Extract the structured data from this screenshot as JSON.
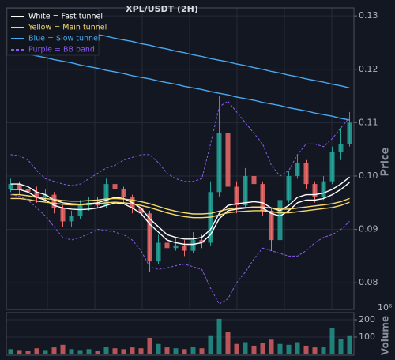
{
  "chart_data": [
    {
      "type": "candlestick",
      "title": "XPL/USDT (2H)",
      "ylabel": "Price",
      "ylim": [
        0.075,
        0.1315
      ],
      "yticks": [
        0.08,
        0.09,
        {
          "value": 0.1,
          "label": "0.10"
        },
        0.11,
        0.12,
        0.13
      ],
      "grid": true,
      "up_color": "#26a69a",
      "down_color": "#ef6b6b",
      "open": [
        0.0975,
        0.0985,
        0.0975,
        0.097,
        0.096,
        0.0965,
        0.094,
        0.0915,
        0.0925,
        0.0945,
        0.095,
        0.0945,
        0.0985,
        0.0975,
        0.096,
        0.094,
        0.093,
        0.084,
        0.0875,
        0.0865,
        0.087,
        0.086,
        0.088,
        0.0875,
        0.097,
        0.108,
        0.098,
        0.0945,
        0.1,
        0.0985,
        0.0935,
        0.088,
        0.0955,
        0.1,
        0.1025,
        0.0985,
        0.096,
        0.099,
        0.1045,
        0.106
      ],
      "high": [
        0.0995,
        0.099,
        0.0985,
        0.098,
        0.0975,
        0.097,
        0.0945,
        0.0935,
        0.0955,
        0.096,
        0.096,
        0.0995,
        0.099,
        0.098,
        0.0965,
        0.0945,
        0.0935,
        0.089,
        0.0885,
        0.0885,
        0.088,
        0.0895,
        0.089,
        0.099,
        0.115,
        0.1095,
        0.099,
        0.1015,
        0.101,
        0.099,
        0.094,
        0.0965,
        0.101,
        0.104,
        0.103,
        0.099,
        0.1,
        0.1055,
        0.109,
        0.112
      ],
      "low": [
        0.097,
        0.0965,
        0.096,
        0.095,
        0.0955,
        0.093,
        0.0905,
        0.0905,
        0.092,
        0.0935,
        0.094,
        0.094,
        0.0965,
        0.095,
        0.093,
        0.0915,
        0.082,
        0.0835,
        0.0855,
        0.086,
        0.085,
        0.0855,
        0.0865,
        0.087,
        0.096,
        0.097,
        0.093,
        0.094,
        0.0975,
        0.0925,
        0.086,
        0.0875,
        0.095,
        0.0995,
        0.0975,
        0.095,
        0.0955,
        0.0985,
        0.103,
        0.1055
      ],
      "close": [
        0.0985,
        0.0975,
        0.097,
        0.096,
        0.0965,
        0.094,
        0.0915,
        0.0925,
        0.0945,
        0.095,
        0.0945,
        0.0985,
        0.0975,
        0.096,
        0.094,
        0.093,
        0.084,
        0.0875,
        0.0865,
        0.087,
        0.086,
        0.088,
        0.0875,
        0.097,
        0.108,
        0.098,
        0.0945,
        0.1,
        0.0985,
        0.0935,
        0.088,
        0.0955,
        0.1,
        0.1025,
        0.0985,
        0.096,
        0.099,
        0.1045,
        0.106,
        0.11
      ],
      "series": [
        {
          "name": "White = Fast tunnel",
          "color": "#ffffff",
          "dashed": false,
          "upper": [
            0.0985,
            0.0985,
            0.098,
            0.097,
            0.0965,
            0.0955,
            0.095,
            0.0948,
            0.0947,
            0.0948,
            0.095,
            0.0955,
            0.096,
            0.0958,
            0.095,
            0.094,
            0.092,
            0.0905,
            0.089,
            0.0885,
            0.0882,
            0.0882,
            0.0885,
            0.09,
            0.093,
            0.0945,
            0.0948,
            0.095,
            0.0952,
            0.095,
            0.094,
            0.0935,
            0.0945,
            0.096,
            0.0965,
            0.0965,
            0.0968,
            0.0975,
            0.0985,
            0.0998
          ],
          "lower": [
            0.0975,
            0.0975,
            0.097,
            0.096,
            0.0955,
            0.0945,
            0.094,
            0.0938,
            0.0937,
            0.0938,
            0.094,
            0.0945,
            0.095,
            0.0948,
            0.094,
            0.093,
            0.091,
            0.0895,
            0.088,
            0.0875,
            0.0872,
            0.0872,
            0.0875,
            0.089,
            0.092,
            0.0935,
            0.0938,
            0.094,
            0.0942,
            0.094,
            0.093,
            0.0925,
            0.0935,
            0.095,
            0.0955,
            0.0955,
            0.0958,
            0.0965,
            0.0975,
            0.0988
          ]
        },
        {
          "name": "Yellow = Main tunnel",
          "color": "#f5d76e",
          "dashed": false,
          "upper": [
            0.0965,
            0.0965,
            0.0963,
            0.096,
            0.0958,
            0.0956,
            0.0954,
            0.0953,
            0.0953,
            0.0954,
            0.0955,
            0.0957,
            0.0958,
            0.0957,
            0.0955,
            0.0952,
            0.0948,
            0.0943,
            0.0938,
            0.0934,
            0.0931,
            0.0929,
            0.0929,
            0.093,
            0.0934,
            0.0938,
            0.094,
            0.0941,
            0.0942,
            0.0942,
            0.094,
            0.0938,
            0.0938,
            0.094,
            0.0942,
            0.0944,
            0.0946,
            0.0948,
            0.0952,
            0.0958
          ],
          "lower": [
            0.0958,
            0.0958,
            0.0956,
            0.0953,
            0.0951,
            0.0949,
            0.0947,
            0.0946,
            0.0946,
            0.0947,
            0.0948,
            0.095,
            0.0951,
            0.095,
            0.0948,
            0.0945,
            0.0941,
            0.0936,
            0.0931,
            0.0927,
            0.0924,
            0.0922,
            0.0922,
            0.0923,
            0.0927,
            0.0931,
            0.0933,
            0.0934,
            0.0935,
            0.0935,
            0.0933,
            0.0931,
            0.0931,
            0.0933,
            0.0935,
            0.0937,
            0.0939,
            0.0941,
            0.0945,
            0.0951
          ]
        },
        {
          "name": "Blue = Slow tunnel",
          "color": "#4aa8f0",
          "dashed": false,
          "upper": [
            0.13,
            0.1297,
            0.1293,
            0.129,
            0.1286,
            0.1283,
            0.1279,
            0.1276,
            0.1272,
            0.1269,
            0.1265,
            0.1262,
            0.1258,
            0.1255,
            0.1252,
            0.1248,
            0.1245,
            0.1241,
            0.1238,
            0.1234,
            0.1231,
            0.1227,
            0.1224,
            0.122,
            0.1217,
            0.1214,
            0.121,
            0.1207,
            0.1203,
            0.12,
            0.1196,
            0.1193,
            0.1189,
            0.1186,
            0.1182,
            0.1179,
            0.1176,
            0.1172,
            0.1169,
            0.1165
          ],
          "lower": [
            0.1235,
            0.1232,
            0.1228,
            0.1225,
            0.1222,
            0.1218,
            0.1215,
            0.1212,
            0.1208,
            0.1205,
            0.1202,
            0.1198,
            0.1195,
            0.1192,
            0.1188,
            0.1185,
            0.1182,
            0.1178,
            0.1175,
            0.1172,
            0.1168,
            0.1165,
            0.1162,
            0.1158,
            0.1155,
            0.1152,
            0.1148,
            0.1145,
            0.1142,
            0.1138,
            0.1135,
            0.1132,
            0.1128,
            0.1125,
            0.1122,
            0.1118,
            0.1115,
            0.1112,
            0.1108,
            0.1105
          ]
        },
        {
          "name": "Purple = BB band",
          "color": "#8a5cf0",
          "dashed": true,
          "upper": [
            0.104,
            0.1038,
            0.103,
            0.101,
            0.0995,
            0.099,
            0.0985,
            0.0982,
            0.0985,
            0.0995,
            0.1005,
            0.1015,
            0.102,
            0.103,
            0.1035,
            0.104,
            0.104,
            0.1025,
            0.1005,
            0.0995,
            0.099,
            0.099,
            0.0995,
            0.106,
            0.113,
            0.114,
            0.112,
            0.11,
            0.108,
            0.106,
            0.102,
            0.1,
            0.101,
            0.104,
            0.106,
            0.106,
            0.1055,
            0.107,
            0.109,
            0.111
          ],
          "lower": [
            0.0965,
            0.0962,
            0.0955,
            0.094,
            0.0925,
            0.0905,
            0.0885,
            0.088,
            0.0885,
            0.0892,
            0.09,
            0.0898,
            0.0895,
            0.089,
            0.088,
            0.086,
            0.083,
            0.0825,
            0.0828,
            0.0832,
            0.0835,
            0.083,
            0.0825,
            0.079,
            0.076,
            0.077,
            0.08,
            0.082,
            0.0845,
            0.0865,
            0.086,
            0.0855,
            0.085,
            0.085,
            0.086,
            0.0875,
            0.0885,
            0.089,
            0.09,
            0.0915
          ]
        }
      ]
    },
    {
      "type": "volume",
      "ylabel": "Volume",
      "offset_label": "10⁶",
      "ylim": [
        -5,
        241
      ],
      "yticks": [
        100,
        200
      ],
      "values": [
        30,
        25,
        20,
        35,
        25,
        40,
        55,
        30,
        25,
        30,
        20,
        45,
        35,
        30,
        40,
        35,
        95,
        60,
        40,
        35,
        30,
        45,
        35,
        110,
        205,
        130,
        60,
        70,
        50,
        65,
        85,
        60,
        55,
        70,
        50,
        40,
        45,
        150,
        90,
        110
      ]
    }
  ]
}
